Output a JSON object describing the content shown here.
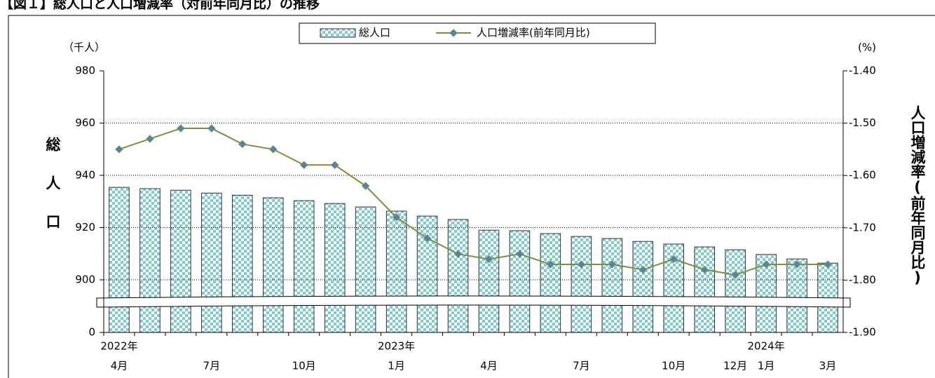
{
  "chart_data": {
    "type": "bar_line",
    "title": "【図１】総人口と人口増減率（対前年同月比）の推移",
    "y_label": "総人口",
    "y_unit": "（千人）",
    "y2_label": "人口増減率(前年同月比)",
    "y2_unit": "(%)",
    "categories": [
      "4月",
      null,
      null,
      "7月",
      null,
      null,
      "10月",
      null,
      null,
      "1月",
      null,
      null,
      "4月",
      null,
      null,
      "7月",
      null,
      null,
      "10月",
      null,
      "12月",
      "1月",
      null,
      "3月"
    ],
    "category_years": [
      "2022年",
      null,
      null,
      null,
      null,
      null,
      null,
      null,
      null,
      "2023年",
      null,
      null,
      null,
      null,
      null,
      null,
      null,
      null,
      null,
      null,
      null,
      "2024年",
      null,
      null
    ],
    "series": [
      {
        "name": "総人口",
        "type": "bar",
        "color": "#7fcbd3",
        "values": [
          935.4,
          934.9,
          934.3,
          933.2,
          932.4,
          931.4,
          930.3,
          929.2,
          927.9,
          926.3,
          924.4,
          923.1,
          919.0,
          918.8,
          917.7,
          916.6,
          915.8,
          914.7,
          913.7,
          912.6,
          911.5,
          909.7,
          908.0,
          906.4
        ]
      },
      {
        "name": "人口増減率(前年同月比)",
        "type": "line",
        "axis": "y2",
        "color": "#77933c",
        "marker_color": "#4f81bd",
        "values": [
          -1.55,
          -1.53,
          -1.51,
          -1.51,
          -1.54,
          -1.55,
          -1.58,
          -1.58,
          -1.62,
          -1.68,
          -1.72,
          -1.75,
          -1.76,
          -1.75,
          -1.77,
          -1.77,
          -1.77,
          -1.78,
          -1.76,
          -1.78,
          -1.79,
          -1.77,
          -1.77,
          -1.77
        ]
      }
    ],
    "ylim": [
      0,
      980
    ],
    "y_break": [
      0,
      900
    ],
    "yticks": [
      0,
      900,
      920,
      940,
      960,
      980
    ],
    "y2lim": [
      -1.9,
      -1.4
    ],
    "y2ticks": [
      {
        "value": -1.4,
        "label": "-1.40"
      },
      {
        "value": -1.5,
        "label": "-1.50"
      },
      {
        "value": -1.6,
        "label": "-1.60"
      },
      {
        "value": -1.7,
        "label": "-1.70"
      },
      {
        "value": -1.8,
        "label": "-1.80"
      },
      {
        "value": -1.9,
        "label": "-1.90"
      }
    ],
    "grid": true,
    "legend": "top"
  }
}
